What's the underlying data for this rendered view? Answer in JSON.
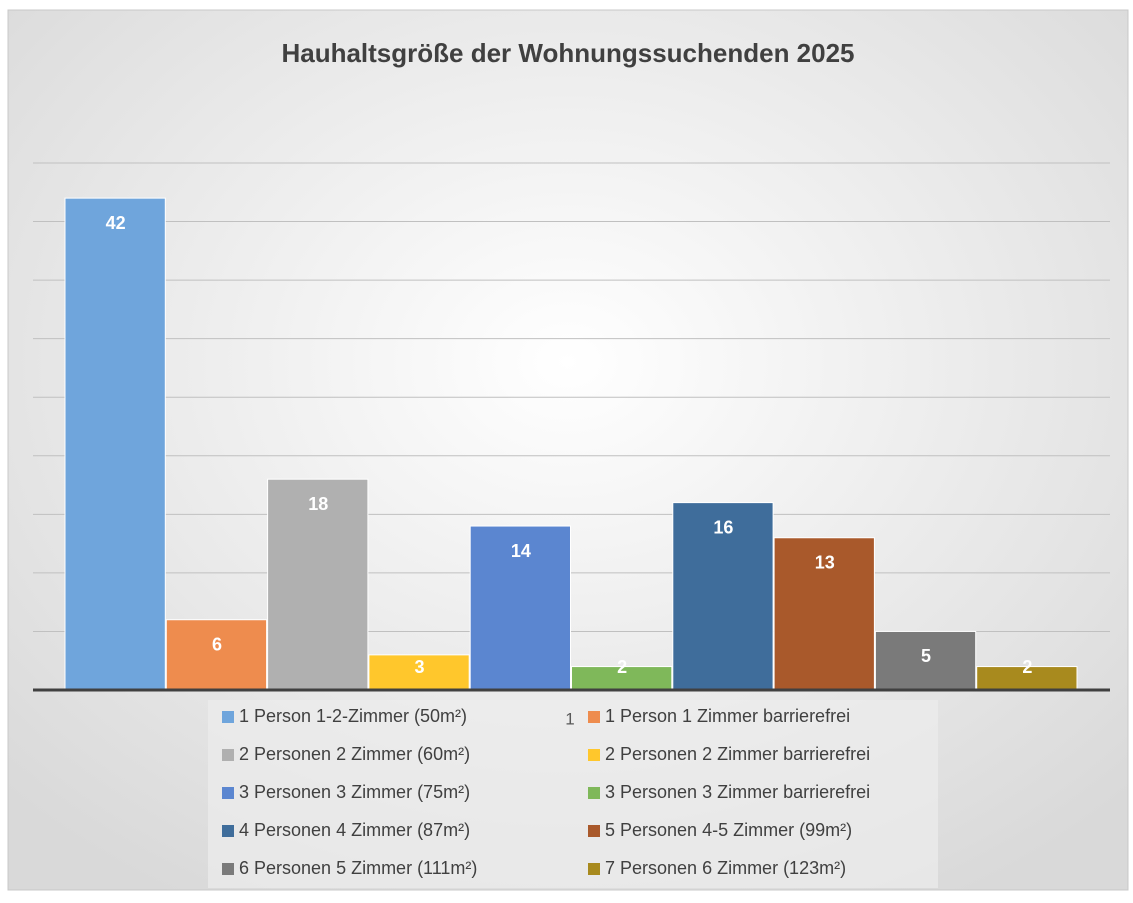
{
  "chart_data": {
    "type": "bar",
    "title": "Hauhaltsgröße der Wohnungssuchenden 2025",
    "categories": [
      "1"
    ],
    "series": [
      {
        "name": "1 Person 1-2-Zimmer (50m²)",
        "color": "#6fa5dc",
        "values": [
          42
        ]
      },
      {
        "name": "1 Person 1 Zimmer barrierefrei",
        "color": "#ee8c4e",
        "values": [
          6
        ]
      },
      {
        "name": "2 Personen 2 Zimmer (60m²)",
        "color": "#b0b0b0",
        "values": [
          18
        ]
      },
      {
        "name": "2 Personen 2 Zimmer barrierefrei",
        "color": "#ffc72c",
        "values": [
          3
        ]
      },
      {
        "name": "3 Personen 3 Zimmer (75m²)",
        "color": "#5b86d0",
        "values": [
          14
        ]
      },
      {
        "name": "3 Personen 3 Zimmer barrierefrei",
        "color": "#7fb85a",
        "values": [
          2
        ]
      },
      {
        "name": "4 Personen 4 Zimmer (87m²)",
        "color": "#3f6d9b",
        "values": [
          16
        ]
      },
      {
        "name": "5 Personen 4-5 Zimmer (99m²)",
        "color": "#a9592b",
        "values": [
          13
        ]
      },
      {
        "name": "6 Personen 5 Zimmer (111m²)",
        "color": "#7a7a7a",
        "values": [
          5
        ]
      },
      {
        "name": "7 Personen 6 Zimmer (123m²)",
        "color": "#a88a1e",
        "values": [
          2
        ]
      }
    ],
    "ylim": [
      0,
      45
    ],
    "yticks": [
      0,
      5,
      10,
      15,
      20,
      25,
      30,
      35,
      40,
      45
    ],
    "grid": true
  }
}
